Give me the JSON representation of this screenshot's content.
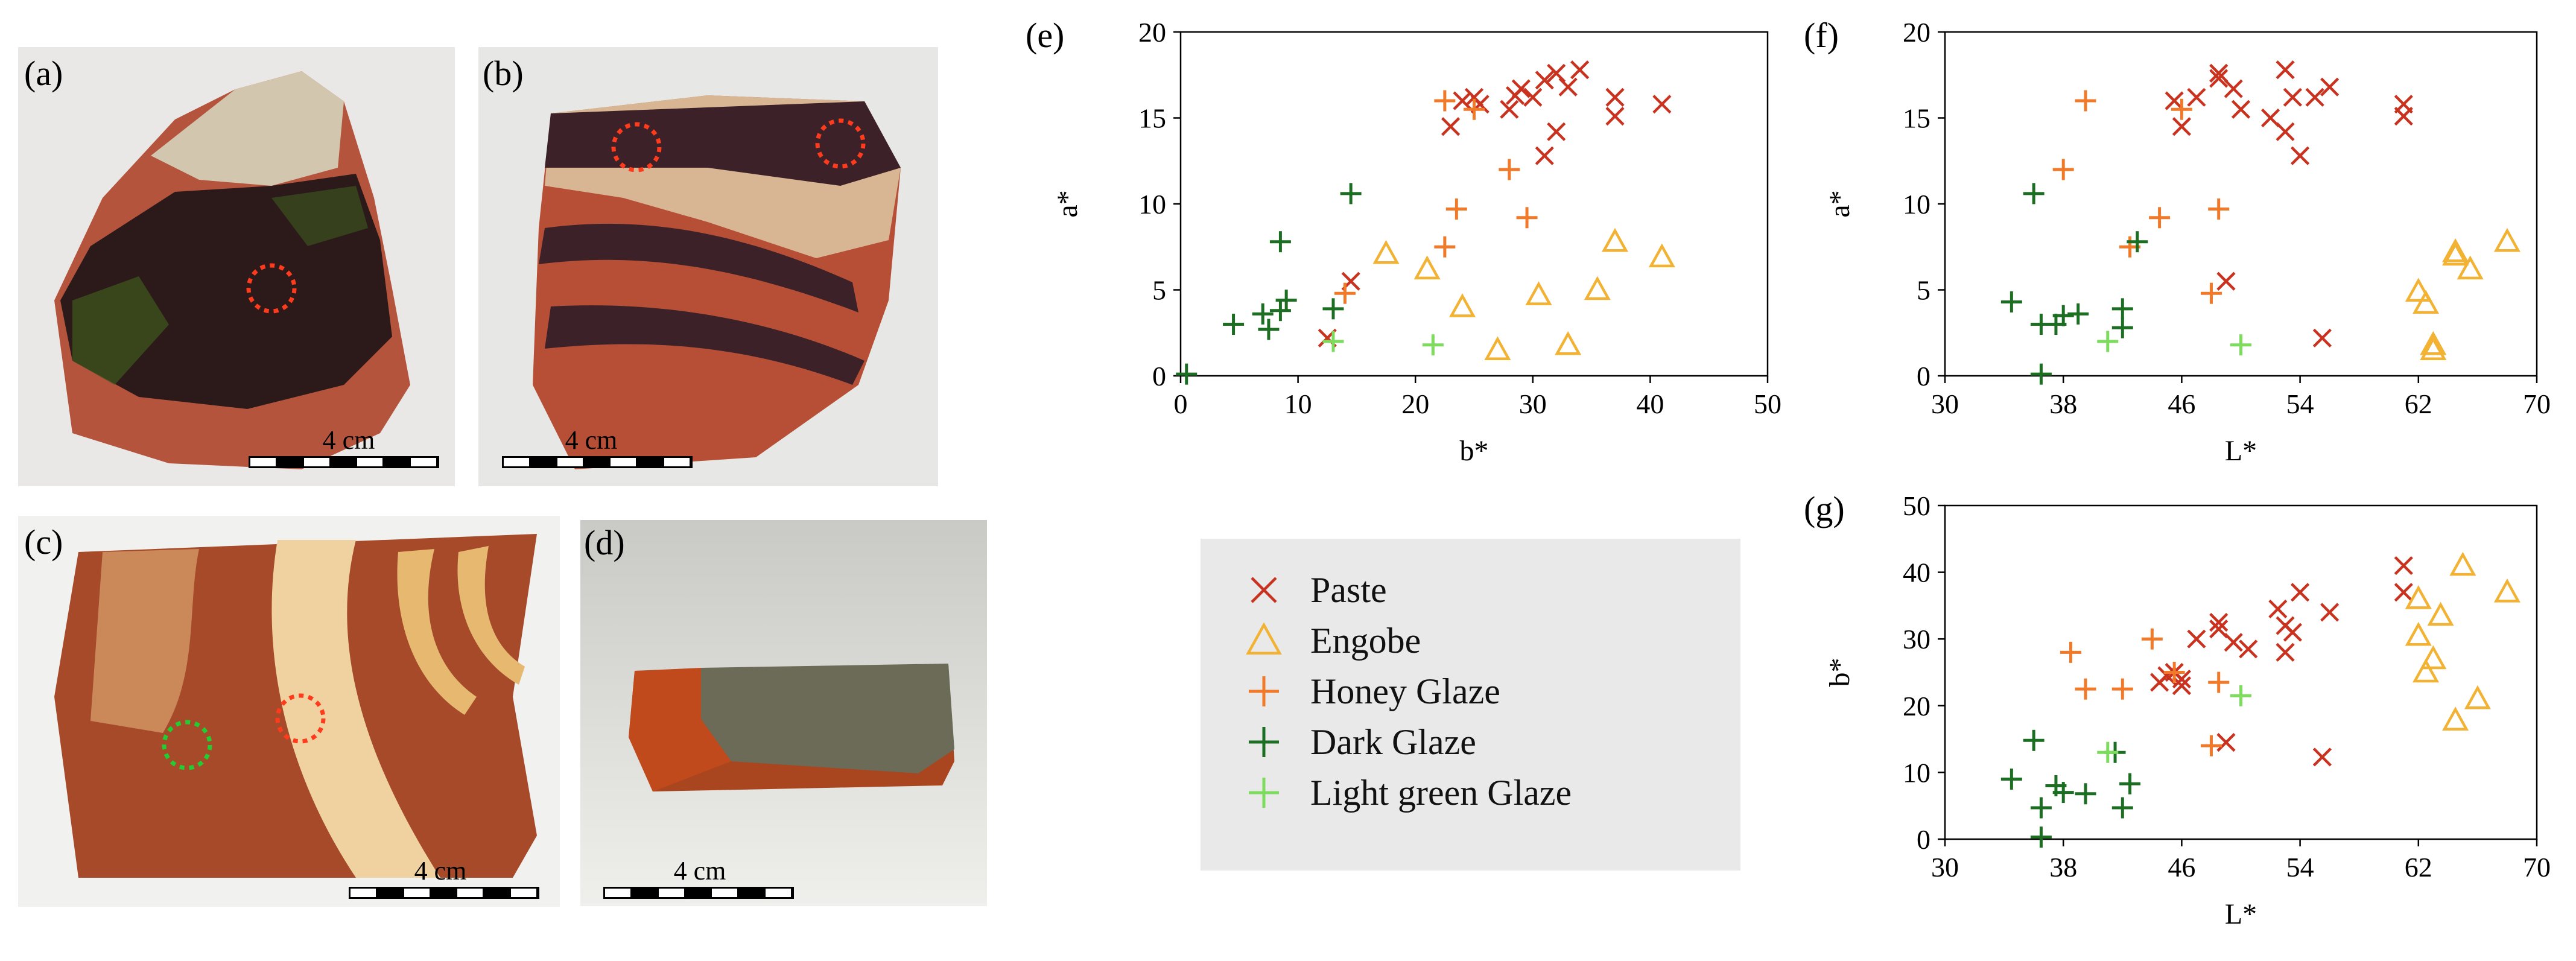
{
  "panels": {
    "a": {
      "label": "(a)",
      "scale_label": "4 cm"
    },
    "b": {
      "label": "(b)",
      "scale_label": "4 cm"
    },
    "c": {
      "label": "(c)",
      "scale_label": "4 cm"
    },
    "d": {
      "label": "(d)",
      "scale_label": "4 cm"
    }
  },
  "colors": {
    "paste": "#c8321e",
    "engobe": "#f2b233",
    "honey_glaze": "#f07a2a",
    "dark_glaze": "#1c6e22",
    "light_green_glaze": "#7ddc5e"
  },
  "legend": {
    "items": [
      {
        "key": "paste",
        "label": "Paste",
        "marker": "x",
        "color": "#c8321e"
      },
      {
        "key": "engobe",
        "label": "Engobe",
        "marker": "triangle",
        "color": "#f2b233"
      },
      {
        "key": "honey_glaze",
        "label": "Honey Glaze",
        "marker": "plus",
        "color": "#f07a2a"
      },
      {
        "key": "dark_glaze",
        "label": "Dark Glaze",
        "marker": "plus",
        "color": "#1c6e22"
      },
      {
        "key": "light_green_glaze",
        "label": "Light green Glaze",
        "marker": "plus",
        "color": "#7ddc5e"
      }
    ]
  },
  "chart_data": [
    {
      "id": "e",
      "panel_label": "(e)",
      "type": "scatter",
      "xlabel": "b*",
      "ylabel": "a*",
      "xlim": [
        0,
        50
      ],
      "ylim": [
        0,
        20
      ],
      "xticks": [
        0,
        10,
        20,
        30,
        40,
        50
      ],
      "yticks": [
        0,
        5,
        10,
        15,
        20
      ],
      "series": [
        {
          "name": "Paste",
          "marker": "x",
          "color": "#c8321e",
          "points": [
            [
              23,
              14.5
            ],
            [
              24,
              16
            ],
            [
              25,
              16.2
            ],
            [
              25.5,
              15.8
            ],
            [
              28,
              15.5
            ],
            [
              28.5,
              16.3
            ],
            [
              29,
              16.7
            ],
            [
              30,
              16.2
            ],
            [
              31,
              17.2
            ],
            [
              32,
              17.6
            ],
            [
              33,
              16.8
            ],
            [
              34,
              17.8
            ],
            [
              32,
              14.2
            ],
            [
              31,
              12.8
            ],
            [
              37,
              16.2
            ],
            [
              37,
              15.1
            ],
            [
              41,
              15.8
            ],
            [
              14.5,
              5.5
            ],
            [
              12.5,
              2.2
            ]
          ]
        },
        {
          "name": "Engobe",
          "marker": "triangle",
          "color": "#f2b233",
          "points": [
            [
              17.5,
              7.1
            ],
            [
              21,
              6.2
            ],
            [
              24,
              4
            ],
            [
              27,
              1.5
            ],
            [
              30.5,
              4.7
            ],
            [
              33,
              1.8
            ],
            [
              35.5,
              5
            ],
            [
              37,
              7.8
            ],
            [
              41,
              6.9
            ]
          ]
        },
        {
          "name": "Honey Glaze",
          "marker": "plus",
          "color": "#f07a2a",
          "points": [
            [
              22.5,
              16
            ],
            [
              25,
              15.5
            ],
            [
              28,
              12
            ],
            [
              29.5,
              9.2
            ],
            [
              23.5,
              9.7
            ],
            [
              22.5,
              7.5
            ],
            [
              14,
              4.8
            ]
          ]
        },
        {
          "name": "Dark Glaze",
          "marker": "plus",
          "color": "#1c6e22",
          "points": [
            [
              4.5,
              3
            ],
            [
              7,
              3.6
            ],
            [
              7.5,
              2.7
            ],
            [
              8.5,
              3.8
            ],
            [
              9,
              4.4
            ],
            [
              8.5,
              7.8
            ],
            [
              13,
              3.9
            ],
            [
              14.5,
              10.6
            ],
            [
              0.5,
              0.1
            ]
          ]
        },
        {
          "name": "Light green Glaze",
          "marker": "plus",
          "color": "#7ddc5e",
          "points": [
            [
              13,
              2
            ],
            [
              21.5,
              1.8
            ]
          ]
        }
      ]
    },
    {
      "id": "f",
      "panel_label": "(f)",
      "type": "scatter",
      "xlabel": "L*",
      "ylabel": "a*",
      "xlim": [
        30,
        70
      ],
      "ylim": [
        0,
        20
      ],
      "xticks": [
        30,
        38,
        46,
        54,
        62,
        70
      ],
      "yticks": [
        0,
        5,
        10,
        15,
        20
      ],
      "series": [
        {
          "name": "Paste",
          "marker": "x",
          "color": "#c8321e",
          "points": [
            [
              45.5,
              16
            ],
            [
              46,
              14.5
            ],
            [
              47,
              16.2
            ],
            [
              48.5,
              17.6
            ],
            [
              48.5,
              17.3
            ],
            [
              49.5,
              16.7
            ],
            [
              50,
              15.5
            ],
            [
              52,
              15
            ],
            [
              53,
              17.8
            ],
            [
              53,
              14.2
            ],
            [
              53.5,
              16.2
            ],
            [
              54,
              12.8
            ],
            [
              55,
              16.2
            ],
            [
              56,
              16.8
            ],
            [
              61,
              15.8
            ],
            [
              61,
              15.1
            ],
            [
              49,
              5.5
            ],
            [
              55.5,
              2.2
            ]
          ]
        },
        {
          "name": "Engobe",
          "marker": "triangle",
          "color": "#f2b233",
          "points": [
            [
              62,
              4.9
            ],
            [
              62.5,
              4.2
            ],
            [
              63,
              1.8
            ],
            [
              63,
              1.5
            ],
            [
              64.5,
              7.2
            ],
            [
              64.5,
              7
            ],
            [
              65.5,
              6.2
            ],
            [
              68,
              7.8
            ]
          ]
        },
        {
          "name": "Honey Glaze",
          "marker": "plus",
          "color": "#f07a2a",
          "points": [
            [
              39.5,
              16
            ],
            [
              38,
              12
            ],
            [
              44.5,
              9.2
            ],
            [
              48.5,
              9.7
            ],
            [
              42.5,
              7.5
            ],
            [
              48,
              4.8
            ],
            [
              46,
              15.5
            ]
          ]
        },
        {
          "name": "Dark Glaze",
          "marker": "plus",
          "color": "#1c6e22",
          "points": [
            [
              36,
              10.6
            ],
            [
              34.5,
              4.3
            ],
            [
              36.5,
              3
            ],
            [
              37.5,
              3
            ],
            [
              38,
              3.5
            ],
            [
              39,
              3.6
            ],
            [
              42,
              3.9
            ],
            [
              42,
              2.8
            ],
            [
              43,
              7.8
            ],
            [
              36.5,
              0.1
            ]
          ]
        },
        {
          "name": "Light green Glaze",
          "marker": "plus",
          "color": "#7ddc5e",
          "points": [
            [
              41,
              2
            ],
            [
              50,
              1.8
            ]
          ]
        }
      ]
    },
    {
      "id": "g",
      "panel_label": "(g)",
      "type": "scatter",
      "xlabel": "L*",
      "ylabel": "b*",
      "xlim": [
        30,
        70
      ],
      "ylim": [
        0,
        50
      ],
      "xticks": [
        30,
        38,
        46,
        54,
        62,
        70
      ],
      "yticks": [
        0,
        10,
        20,
        30,
        40,
        50
      ],
      "series": [
        {
          "name": "Paste",
          "marker": "x",
          "color": "#c8321e",
          "points": [
            [
              44.5,
              23.5
            ],
            [
              45,
              24.5
            ],
            [
              45.5,
              25
            ],
            [
              46,
              24
            ],
            [
              47,
              30
            ],
            [
              48.5,
              32.5
            ],
            [
              48.5,
              31.5
            ],
            [
              49.5,
              29.5
            ],
            [
              50.5,
              28.5
            ],
            [
              52.5,
              34.5
            ],
            [
              53,
              28
            ],
            [
              53,
              32
            ],
            [
              54,
              37
            ],
            [
              56,
              34
            ],
            [
              61,
              41
            ],
            [
              61,
              37
            ],
            [
              46,
              23
            ],
            [
              49,
              14.5
            ],
            [
              55.5,
              12.3
            ],
            [
              53.5,
              31
            ]
          ]
        },
        {
          "name": "Engobe",
          "marker": "triangle",
          "color": "#f2b233",
          "points": [
            [
              62,
              36
            ],
            [
              62,
              30.5
            ],
            [
              62.5,
              25
            ],
            [
              63,
              27
            ],
            [
              63.5,
              33.5
            ],
            [
              64.5,
              17.8
            ],
            [
              65,
              41
            ],
            [
              66,
              21
            ],
            [
              68,
              37
            ]
          ]
        },
        {
          "name": "Honey Glaze",
          "marker": "plus",
          "color": "#f07a2a",
          "points": [
            [
              38.5,
              28
            ],
            [
              39.5,
              22.5
            ],
            [
              42,
              22.5
            ],
            [
              44,
              30
            ],
            [
              45.5,
              25
            ],
            [
              48,
              14
            ],
            [
              48.5,
              23.5
            ]
          ]
        },
        {
          "name": "Dark Glaze",
          "marker": "plus",
          "color": "#1c6e22",
          "points": [
            [
              34.5,
              9
            ],
            [
              36,
              14.8
            ],
            [
              36.5,
              4.7
            ],
            [
              36.5,
              0.3
            ],
            [
              37.5,
              8
            ],
            [
              38,
              7
            ],
            [
              39.5,
              6.8
            ],
            [
              41.5,
              13
            ],
            [
              42,
              4.7
            ],
            [
              42.5,
              8.3
            ]
          ]
        },
        {
          "name": "Light green Glaze",
          "marker": "plus",
          "color": "#7ddc5e",
          "points": [
            [
              41,
              13
            ],
            [
              50,
              21.5
            ]
          ]
        }
      ]
    }
  ]
}
